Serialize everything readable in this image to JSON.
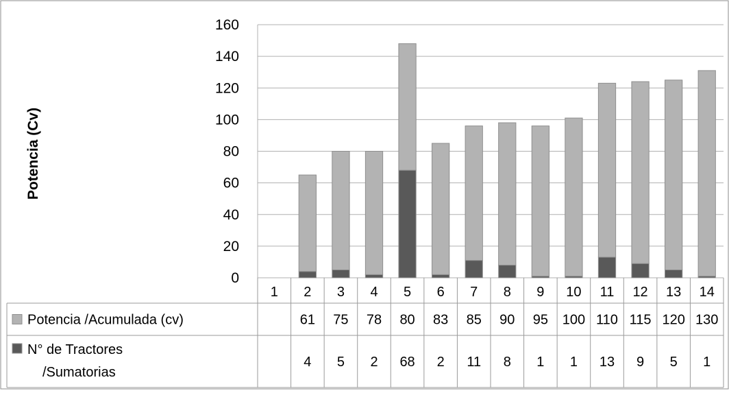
{
  "chart_data": {
    "type": "bar",
    "stacked": true,
    "ylabel": "Potencia (Cv)",
    "ylim": [
      0,
      160
    ],
    "yticks": [
      0,
      20,
      40,
      60,
      80,
      100,
      120,
      140,
      160
    ],
    "grid": true,
    "legend_placement": "data-table",
    "categories": [
      "1",
      "2",
      "3",
      "4",
      "5",
      "6",
      "7",
      "8",
      "9",
      "10",
      "11",
      "12",
      "13",
      "14"
    ],
    "series": [
      {
        "name": "N° de Tractores /Sumatorias",
        "color": "#595959",
        "values": [
          null,
          4,
          5,
          2,
          68,
          2,
          11,
          8,
          1,
          1,
          13,
          9,
          5,
          1
        ]
      },
      {
        "name": "Potencia /Acumulada (cv)",
        "color": "#b3b3b3",
        "values": [
          null,
          61,
          75,
          78,
          80,
          83,
          85,
          90,
          95,
          100,
          110,
          115,
          120,
          130
        ]
      }
    ],
    "table": {
      "rows": [
        {
          "series_index": 1,
          "label_lines": [
            "Potencia /Acumulada (cv)"
          ],
          "values": [
            "",
            "61",
            "75",
            "78",
            "80",
            "83",
            "85",
            "90",
            "95",
            "100",
            "110",
            "115",
            "120",
            "130"
          ]
        },
        {
          "series_index": 0,
          "label_lines": [
            "N° de Tractores",
            "/Sumatorias"
          ],
          "values": [
            "",
            "4",
            "5",
            "2",
            "68",
            "2",
            "11",
            "8",
            "1",
            "1",
            "13",
            "9",
            "5",
            "1"
          ]
        }
      ]
    }
  }
}
